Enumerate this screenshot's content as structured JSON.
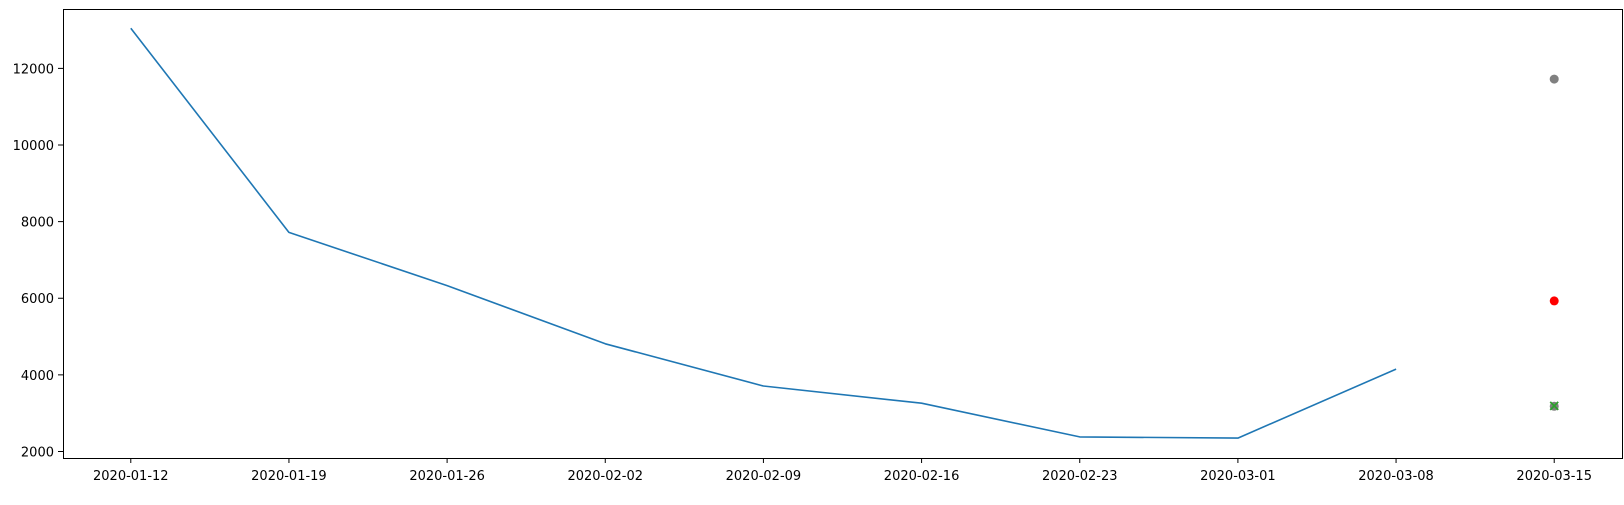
{
  "chart_data": {
    "type": "line",
    "title": "",
    "xlabel": "",
    "ylabel": "",
    "x_ticks": [
      "2020-01-12",
      "2020-01-19",
      "2020-01-26",
      "2020-02-02",
      "2020-02-09",
      "2020-02-16",
      "2020-02-23",
      "2020-03-01",
      "2020-03-08",
      "2020-03-15"
    ],
    "y_ticks": [
      2000,
      4000,
      6000,
      8000,
      10000,
      12000
    ],
    "xlim": [
      "2020-01-09",
      "2020-03-18"
    ],
    "ylim": [
      1830,
      13550
    ],
    "grid": false,
    "legend": "none",
    "series": [
      {
        "kind": "line",
        "color": "#1f77b4",
        "x": [
          "2020-01-12",
          "2020-01-19",
          "2020-01-26",
          "2020-02-02",
          "2020-02-09",
          "2020-02-16",
          "2020-02-23",
          "2020-03-01",
          "2020-03-08"
        ],
        "y": [
          13050,
          7720,
          6330,
          4810,
          3710,
          3260,
          2380,
          2350,
          4150
        ]
      },
      {
        "kind": "point",
        "marker": "circle",
        "color": "#808080",
        "x": [
          "2020-03-15"
        ],
        "y": [
          11720
        ]
      },
      {
        "kind": "point",
        "marker": "circle",
        "color": "#ff0000",
        "x": [
          "2020-03-15"
        ],
        "y": [
          5930
        ]
      },
      {
        "kind": "point",
        "marker": "circle",
        "color": "#808080",
        "x": [
          "2020-03-15"
        ],
        "y": [
          3180
        ]
      },
      {
        "kind": "point",
        "marker": "x",
        "color": "#2ca02c",
        "x": [
          "2020-03-15"
        ],
        "y": [
          3190
        ]
      }
    ]
  }
}
